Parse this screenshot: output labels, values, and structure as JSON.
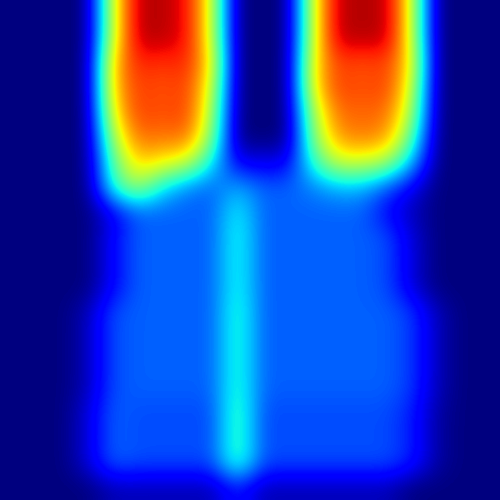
{
  "chart_data": {
    "type": "heatmap",
    "color": "jet",
    "tick_labels": false,
    "zlim": [
      0,
      1
    ],
    "cells": [
      [
        0,
        0,
        0,
        0,
        0.6,
        0.95,
        0.95,
        0.9,
        0.6,
        0,
        0,
        0,
        0.6,
        0.95,
        0.95,
        0.95,
        0.6,
        0,
        0,
        0
      ],
      [
        0,
        0,
        0,
        0,
        0.6,
        0.95,
        0.95,
        0.9,
        0.6,
        0,
        0,
        0,
        0.6,
        0.95,
        0.95,
        0.95,
        0.6,
        0,
        0,
        0
      ],
      [
        0,
        0,
        0,
        0,
        0.7,
        0.88,
        0.85,
        0.88,
        0.65,
        0,
        0,
        0,
        0.65,
        0.85,
        0.82,
        0.85,
        0.65,
        0,
        0,
        0
      ],
      [
        0,
        0,
        0,
        0,
        0.7,
        0.85,
        0.82,
        0.85,
        0.6,
        0,
        0,
        0,
        0.65,
        0.85,
        0.82,
        0.85,
        0.6,
        0,
        0,
        0
      ],
      [
        0,
        0,
        0,
        0,
        0.65,
        0.85,
        0.82,
        0.85,
        0.55,
        0,
        0,
        0,
        0.55,
        0.8,
        0.8,
        0.8,
        0.55,
        0,
        0,
        0
      ],
      [
        0,
        0,
        0,
        0,
        0.55,
        0.8,
        0.78,
        0.8,
        0.5,
        0,
        0,
        0,
        0.5,
        0.75,
        0.78,
        0.75,
        0.45,
        0,
        0,
        0
      ],
      [
        0,
        0,
        0,
        0,
        0.45,
        0.7,
        0.65,
        0.6,
        0.35,
        0.1,
        0.1,
        0.1,
        0.4,
        0.6,
        0.6,
        0.55,
        0.3,
        0,
        0,
        0
      ],
      [
        0,
        0,
        0,
        0,
        0.4,
        0.55,
        0.35,
        0.25,
        0.22,
        0.3,
        0.22,
        0.22,
        0.25,
        0.3,
        0.3,
        0.2,
        0.1,
        0,
        0,
        0
      ],
      [
        0,
        0,
        0,
        0,
        0.1,
        0.22,
        0.22,
        0.22,
        0.22,
        0.38,
        0.22,
        0.22,
        0.22,
        0.22,
        0.22,
        0.12,
        0.05,
        0,
        0,
        0
      ],
      [
        0,
        0,
        0,
        0,
        0.12,
        0.22,
        0.22,
        0.22,
        0.22,
        0.4,
        0.22,
        0.22,
        0.22,
        0.22,
        0.22,
        0.2,
        0.08,
        0,
        0,
        0
      ],
      [
        0,
        0,
        0,
        0,
        0.12,
        0.22,
        0.22,
        0.22,
        0.22,
        0.4,
        0.22,
        0.22,
        0.22,
        0.22,
        0.22,
        0.2,
        0.08,
        0,
        0,
        0
      ],
      [
        0,
        0,
        0,
        0,
        0.12,
        0.22,
        0.22,
        0.22,
        0.22,
        0.4,
        0.22,
        0.22,
        0.22,
        0.22,
        0.22,
        0.2,
        0.08,
        0,
        0,
        0
      ],
      [
        0,
        0,
        0,
        0.05,
        0.2,
        0.22,
        0.22,
        0.22,
        0.22,
        0.42,
        0.22,
        0.22,
        0.22,
        0.22,
        0.22,
        0.22,
        0.18,
        0.05,
        0,
        0
      ],
      [
        0,
        0,
        0,
        0.05,
        0.2,
        0.22,
        0.22,
        0.22,
        0.22,
        0.42,
        0.22,
        0.22,
        0.22,
        0.22,
        0.22,
        0.22,
        0.18,
        0.05,
        0,
        0
      ],
      [
        0,
        0,
        0,
        0.05,
        0.2,
        0.22,
        0.22,
        0.22,
        0.22,
        0.42,
        0.22,
        0.22,
        0.22,
        0.22,
        0.22,
        0.22,
        0.18,
        0.05,
        0,
        0
      ],
      [
        0,
        0,
        0,
        0.05,
        0.2,
        0.22,
        0.22,
        0.22,
        0.22,
        0.42,
        0.22,
        0.22,
        0.22,
        0.22,
        0.22,
        0.22,
        0.18,
        0.05,
        0,
        0
      ],
      [
        0,
        0,
        0,
        0.08,
        0.22,
        0.2,
        0.2,
        0.2,
        0.2,
        0.45,
        0.2,
        0.2,
        0.2,
        0.2,
        0.2,
        0.2,
        0.15,
        0.03,
        0,
        0
      ],
      [
        0,
        0,
        0,
        0.08,
        0.22,
        0.2,
        0.2,
        0.2,
        0.2,
        0.45,
        0.2,
        0.2,
        0.2,
        0.2,
        0.2,
        0.2,
        0.15,
        0.03,
        0,
        0
      ],
      [
        0,
        0,
        0,
        0.08,
        0.22,
        0.2,
        0.2,
        0.2,
        0.2,
        0.45,
        0.2,
        0.2,
        0.2,
        0.2,
        0.2,
        0.2,
        0.15,
        0.03,
        0,
        0
      ],
      [
        0,
        0,
        0,
        0,
        0.05,
        0.05,
        0.05,
        0.05,
        0.05,
        0.15,
        0.05,
        0.05,
        0.05,
        0.05,
        0.05,
        0.05,
        0,
        0,
        0,
        0
      ]
    ]
  }
}
